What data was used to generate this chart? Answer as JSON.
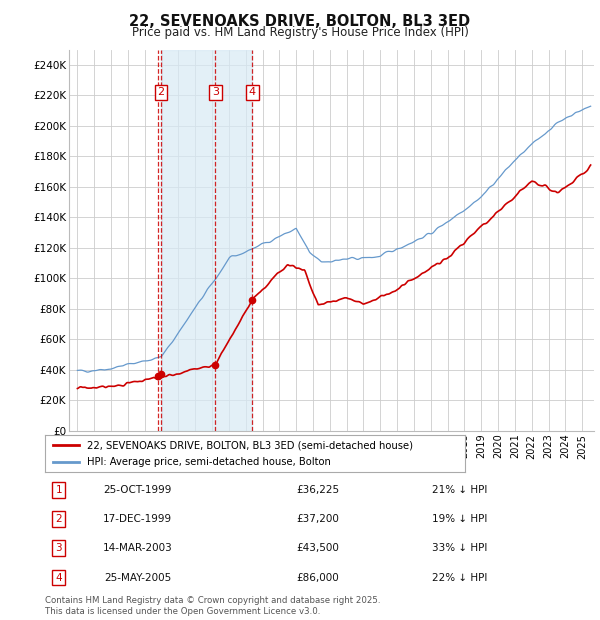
{
  "title": "22, SEVENOAKS DRIVE, BOLTON, BL3 3ED",
  "subtitle": "Price paid vs. HM Land Registry's House Price Index (HPI)",
  "red_line_label": "22, SEVENOAKS DRIVE, BOLTON, BL3 3ED (semi-detached house)",
  "blue_line_label": "HPI: Average price, semi-detached house, Bolton",
  "footer": "Contains HM Land Registry data © Crown copyright and database right 2025.\nThis data is licensed under the Open Government Licence v3.0.",
  "purchases": [
    {
      "num": 1,
      "date": "25-OCT-1999",
      "price": 36225,
      "pct": "21% ↓ HPI",
      "year": 1999.81
    },
    {
      "num": 2,
      "date": "17-DEC-1999",
      "price": 37200,
      "pct": "19% ↓ HPI",
      "year": 1999.96
    },
    {
      "num": 3,
      "date": "14-MAR-2003",
      "price": 43500,
      "pct": "33% ↓ HPI",
      "year": 2003.2
    },
    {
      "num": 4,
      "date": "25-MAY-2005",
      "price": 86000,
      "pct": "22% ↓ HPI",
      "year": 2005.4
    }
  ],
  "ylim": [
    0,
    250000
  ],
  "yticks": [
    0,
    20000,
    40000,
    60000,
    80000,
    100000,
    120000,
    140000,
    160000,
    180000,
    200000,
    220000,
    240000
  ],
  "xlim_start": 1994.5,
  "xlim_end": 2025.7,
  "red_color": "#cc0000",
  "blue_color": "#6699cc",
  "background_color": "#ffffff",
  "grid_color": "#cccccc",
  "shaded_color": "#d8eaf5",
  "shaded_alpha": 0.7
}
